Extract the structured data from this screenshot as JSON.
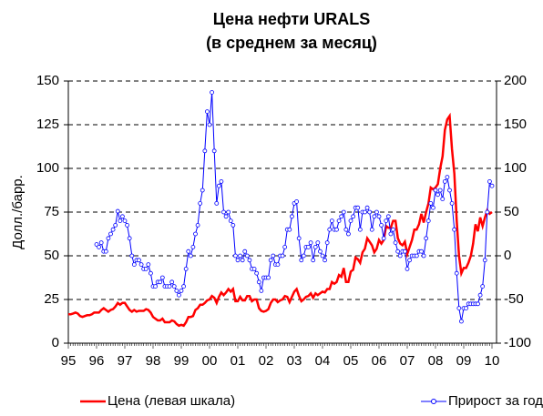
{
  "chart_data": {
    "type": "line",
    "title": "Цена нефти URALS",
    "subtitle": "(в среднем за месяц)",
    "y_label": "Долл./барр.",
    "categories": [
      "95",
      null,
      null,
      null,
      null,
      null,
      null,
      null,
      null,
      null,
      null,
      null,
      "96",
      null,
      null,
      null,
      null,
      null,
      null,
      null,
      null,
      null,
      null,
      null,
      "97",
      null,
      null,
      null,
      null,
      null,
      null,
      null,
      null,
      null,
      null,
      null,
      "98",
      null,
      null,
      null,
      null,
      null,
      null,
      null,
      null,
      null,
      null,
      null,
      "99",
      null,
      null,
      null,
      null,
      null,
      null,
      null,
      null,
      null,
      null,
      null,
      "00",
      null,
      null,
      null,
      null,
      null,
      null,
      null,
      null,
      null,
      null,
      null,
      "01",
      null,
      null,
      null,
      null,
      null,
      null,
      null,
      null,
      null,
      null,
      null,
      "02",
      null,
      null,
      null,
      null,
      null,
      null,
      null,
      null,
      null,
      null,
      null,
      "03",
      null,
      null,
      null,
      null,
      null,
      null,
      null,
      null,
      null,
      null,
      null,
      "04",
      null,
      null,
      null,
      null,
      null,
      null,
      null,
      null,
      null,
      null,
      null,
      "05",
      null,
      null,
      null,
      null,
      null,
      null,
      null,
      null,
      null,
      null,
      null,
      "06",
      null,
      null,
      null,
      null,
      null,
      null,
      null,
      null,
      null,
      null,
      null,
      "07",
      null,
      null,
      null,
      null,
      null,
      null,
      null,
      null,
      null,
      null,
      null,
      "08",
      null,
      null,
      null,
      null,
      null,
      null,
      null,
      null,
      null,
      null,
      null,
      "09",
      null,
      null,
      null,
      null,
      null,
      null,
      null,
      null,
      null,
      null,
      null,
      "10"
    ],
    "series": [
      {
        "name": "Цена (левая шкала)",
        "color": "#ff0000",
        "values": [
          16.5,
          16.5,
          17,
          17.5,
          17,
          15.5,
          15,
          15.5,
          16,
          16,
          16.5,
          17.5,
          17.5,
          17.5,
          19,
          20,
          19,
          18,
          19,
          19.5,
          21,
          23,
          22,
          23,
          23,
          21,
          19,
          18,
          19,
          18,
          18.5,
          18.5,
          18.5,
          19.5,
          19,
          17.5,
          15,
          14,
          13,
          13,
          14,
          12,
          12,
          12,
          13,
          12.5,
          11,
          10,
          10.5,
          10,
          12,
          15,
          15,
          15.5,
          19,
          20,
          22,
          22,
          23,
          24.5,
          25,
          27,
          26,
          23,
          26.5,
          29,
          27.5,
          29,
          31,
          29.5,
          31,
          24,
          24,
          26.5,
          24.5,
          24.5,
          27,
          27,
          24,
          25,
          25,
          20,
          18.5,
          18,
          18.5,
          19.5,
          23,
          25,
          25,
          23.5,
          24.5,
          25,
          27,
          26.5,
          23.5,
          26.5,
          29.5,
          31,
          27,
          24,
          25,
          26.5,
          27,
          28.5,
          26,
          28.5,
          27.5,
          28.5,
          29.5,
          29,
          31,
          31,
          35,
          34,
          35,
          39,
          38,
          43,
          35,
          35,
          41,
          42,
          49,
          48,
          46,
          52,
          54,
          60,
          58,
          56,
          52,
          54,
          59,
          57,
          59,
          67,
          66,
          66,
          70,
          70,
          60,
          57,
          56,
          58,
          51,
          55,
          59,
          65,
          65,
          68,
          74,
          69,
          75,
          80,
          89,
          88,
          89,
          91,
          100,
          107,
          122,
          128,
          130,
          111,
          97,
          70,
          50,
          40,
          43,
          43,
          46,
          50,
          57,
          68,
          64,
          72,
          67,
          72,
          76,
          74,
          75
        ]
      },
      {
        "name": "Прирост за год",
        "color": "#0000ff",
        "axis": "y2",
        "values": [
          null,
          null,
          null,
          null,
          null,
          null,
          null,
          null,
          null,
          null,
          null,
          null,
          13,
          10,
          15,
          5,
          5,
          20,
          25,
          30,
          35,
          51,
          40,
          45,
          40,
          35,
          20,
          0,
          -10,
          -5,
          -5,
          -10,
          -15,
          -15,
          -10,
          -20,
          -35,
          -35,
          -30,
          -30,
          -25,
          -35,
          -35,
          -35,
          -30,
          -35,
          -40,
          -45,
          -40,
          -35,
          -15,
          5,
          0,
          10,
          25,
          35,
          60,
          75,
          120,
          165,
          150,
          187,
          120,
          60,
          80,
          85,
          50,
          45,
          50,
          40,
          35,
          0,
          -5,
          0,
          -5,
          5,
          0,
          -5,
          -15,
          -15,
          -20,
          -30,
          -40,
          -25,
          -25,
          -25,
          -5,
          0,
          -10,
          -10,
          0,
          0,
          10,
          30,
          30,
          45,
          60,
          62,
          20,
          -5,
          0,
          10,
          10,
          15,
          -5,
          10,
          15,
          5,
          0,
          -5,
          15,
          30,
          40,
          30,
          30,
          40,
          45,
          50,
          30,
          25,
          40,
          45,
          55,
          55,
          30,
          50,
          50,
          55,
          50,
          30,
          45,
          50,
          45,
          35,
          20,
          40,
          45,
          25,
          30,
          15,
          5,
          0,
          5,
          5,
          -15,
          -5,
          0,
          0,
          0,
          5,
          5,
          0,
          20,
          40,
          60,
          55,
          75,
          70,
          75,
          65,
          85,
          90,
          75,
          60,
          30,
          -20,
          -60,
          -75,
          -60,
          -60,
          -55,
          -55,
          -55,
          -55,
          -55,
          -45,
          -35,
          -5,
          50,
          85,
          80
        ]
      }
    ],
    "ylim": [
      0,
      150
    ],
    "yticks": [
      0,
      25,
      50,
      75,
      100,
      125,
      150
    ],
    "y2lim": [
      -100,
      200
    ],
    "y2ticks": [
      -100,
      -50,
      0,
      50,
      100,
      150,
      200
    ],
    "grid": true,
    "legend": "bottom"
  }
}
